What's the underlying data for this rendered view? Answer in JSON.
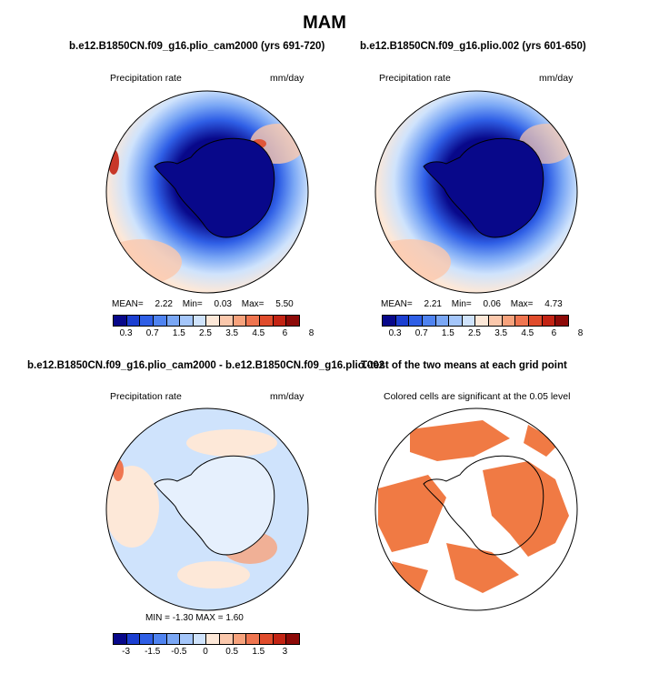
{
  "header": {
    "title": "MAM"
  },
  "panels": {
    "top_left": {
      "title": "b.e12.B1850CN.f09_g16.plio_cam2000 (yrs 691-720)",
      "variable": "Precipitation rate",
      "units": "mm/day",
      "stats": {
        "mean_label": "MEAN=",
        "mean": "2.22",
        "min_label": "Min=",
        "min": "0.03",
        "max_label": "Max=",
        "max": "5.50"
      }
    },
    "top_right": {
      "title": "b.e12.B1850CN.f09_g16.plio.002 (yrs 601-650)",
      "variable": "Precipitation rate",
      "units": "mm/day",
      "stats": {
        "mean_label": "MEAN=",
        "mean": "2.21",
        "min_label": "Min=",
        "min": "0.06",
        "max_label": "Max=",
        "max": "4.73"
      }
    },
    "bottom_left": {
      "title": "b.e12.B1850CN.f09_g16.plio_cam2000 - b.e12.B1850CN.f09_g16.plio.002",
      "variable": "Precipitation rate",
      "units": "mm/day",
      "minmax": "MIN =   -1.30  MAX =    1.60"
    },
    "bottom_right": {
      "title": "T-test of the two means at each grid point",
      "note": "Colored cells are significant at the 0.05 level"
    }
  },
  "colorbars": {
    "precip": {
      "colors": [
        "#08088a",
        "#1c3fd1",
        "#2f5fe6",
        "#4f83f0",
        "#7aa7f5",
        "#a4c6fa",
        "#cfe3fc",
        "#fde8d8",
        "#fbc8ac",
        "#f7a27c",
        "#ef7550",
        "#e04c2c",
        "#c32414",
        "#8d0a08"
      ],
      "labels": [
        "0.3",
        "0.7",
        "1.5",
        "2.5",
        "3.5",
        "4.5",
        "6",
        "8"
      ]
    },
    "diff": {
      "colors": [
        "#08088a",
        "#1c3fd1",
        "#2f5fe6",
        "#4f83f0",
        "#7aa7f5",
        "#a4c6fa",
        "#cfe3fc",
        "#fde8d8",
        "#fbc8ac",
        "#f7a27c",
        "#ef7550",
        "#e04c2c",
        "#c32414",
        "#8d0a08"
      ],
      "labels": [
        "-3",
        "-1.5",
        "-0.5",
        "0",
        "0.5",
        "1.5",
        "3"
      ]
    }
  },
  "colors": {
    "significant": "#f07a44",
    "land_outline": "#000000"
  }
}
